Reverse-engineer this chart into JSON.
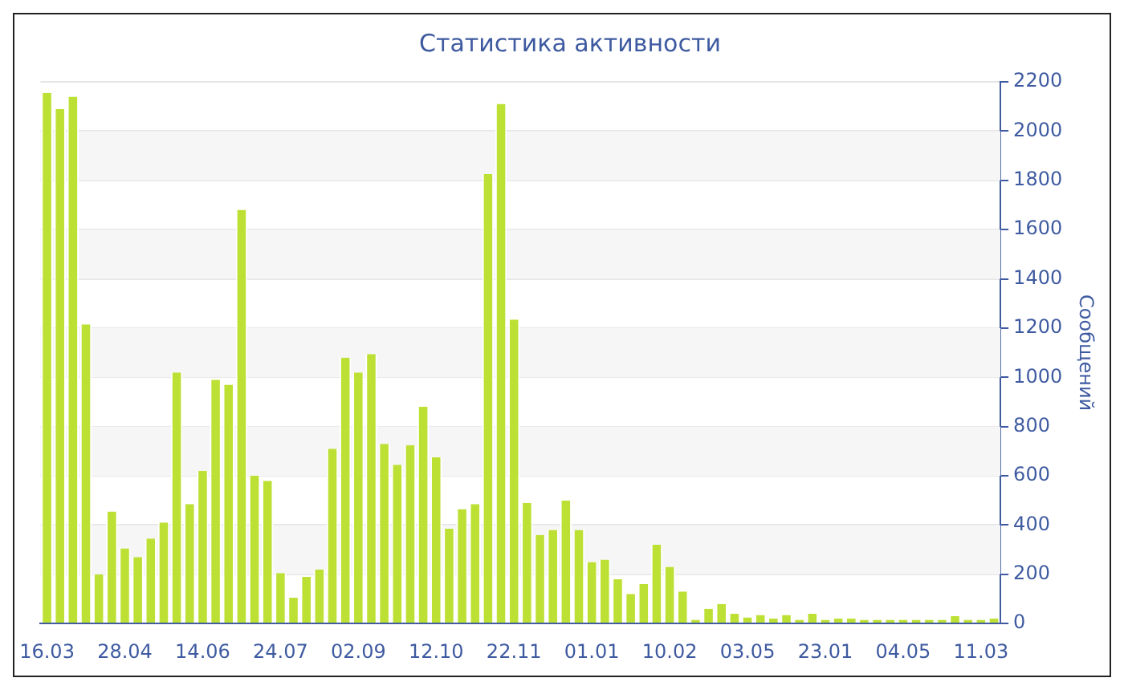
{
  "chart_data": {
    "type": "bar",
    "title": "Статистика активности",
    "ylabel": "Сообщений",
    "categories": [
      "16.03",
      null,
      null,
      null,
      null,
      null,
      "28.04",
      null,
      null,
      null,
      null,
      null,
      "14.06",
      null,
      null,
      null,
      null,
      null,
      "24.07",
      null,
      null,
      null,
      null,
      null,
      "02.09",
      null,
      null,
      null,
      null,
      null,
      "12.10",
      null,
      null,
      null,
      null,
      null,
      "22.11",
      null,
      null,
      null,
      null,
      null,
      "01.01",
      null,
      null,
      null,
      null,
      null,
      "10.02",
      null,
      null,
      null,
      null,
      null,
      "03.05",
      null,
      null,
      null,
      null,
      null,
      "23.01",
      null,
      null,
      null,
      null,
      null,
      "04.05",
      null,
      null,
      null,
      null,
      null,
      "11.03",
      null
    ],
    "values": [
      2155,
      2090,
      2140,
      1215,
      200,
      455,
      305,
      270,
      345,
      410,
      1020,
      485,
      620,
      990,
      970,
      1680,
      600,
      580,
      205,
      105,
      190,
      220,
      710,
      1080,
      1020,
      1095,
      730,
      645,
      725,
      880,
      675,
      385,
      465,
      485,
      1825,
      2110,
      1235,
      490,
      360,
      380,
      500,
      380,
      250,
      260,
      180,
      120,
      160,
      320,
      230,
      130,
      15,
      60,
      80,
      40,
      25,
      35,
      20,
      35,
      15,
      40,
      15,
      20,
      20,
      15,
      15,
      15,
      15,
      15,
      15,
      15,
      30,
      15,
      15,
      20
    ],
    "color": "#bde034",
    "ylim": [
      0,
      2200
    ],
    "yticks": [
      0,
      200,
      400,
      600,
      800,
      1000,
      1200,
      1400,
      1600,
      1800,
      2000,
      2200
    ],
    "grid": "y",
    "legend": false
  }
}
